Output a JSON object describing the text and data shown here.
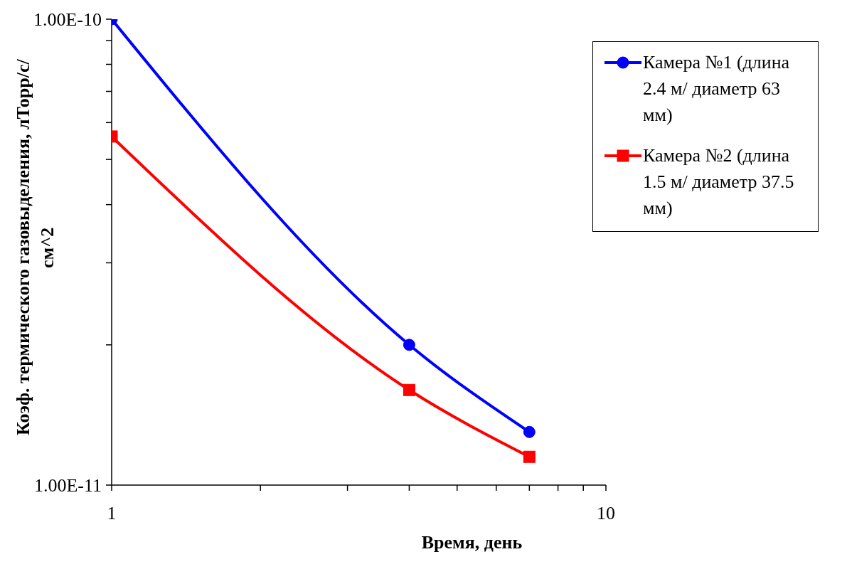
{
  "chart_data": {
    "type": "line",
    "xlabel": "Время, день",
    "ylabel": "Коэф. термического газовыделения, лТорр/с/см^2",
    "log": "xy",
    "x": [
      1,
      4,
      7
    ],
    "xlim": [
      1,
      10
    ],
    "xticks": [
      1,
      {
        "value": 2,
        "label": null
      },
      {
        "value": 3,
        "label": null
      },
      {
        "value": 4,
        "label": null
      },
      {
        "value": 5,
        "label": null
      },
      {
        "value": 6,
        "label": null
      },
      {
        "value": 7,
        "label": null
      },
      {
        "value": 8,
        "label": null
      },
      {
        "value": 9,
        "label": null
      },
      10
    ],
    "ylim": [
      1e-11,
      1e-10
    ],
    "yticks": [
      {
        "value": 1e-11,
        "label": "1.00E-11"
      },
      {
        "value": 2e-11,
        "label": null
      },
      {
        "value": 3e-11,
        "label": null
      },
      {
        "value": 4e-11,
        "label": null
      },
      {
        "value": 5e-11,
        "label": null
      },
      {
        "value": 6e-11,
        "label": null
      },
      {
        "value": 7e-11,
        "label": null
      },
      {
        "value": 8e-11,
        "label": null
      },
      {
        "value": 9e-11,
        "label": null
      },
      {
        "value": 1e-10,
        "label": "1.00E-10"
      }
    ],
    "grid": false,
    "legend": "top right",
    "series": [
      {
        "name": "Камера №1 (длина 2.4 м/ диаметр 63 мм)",
        "color": "#0000ff",
        "marker": "circle",
        "values": [
          1e-10,
          2e-11,
          1.3e-11
        ]
      },
      {
        "name": "Камера №2 (длина 1.5 м/ диаметр 37.5 мм)",
        "color": "#ff0000",
        "marker": "square",
        "values": [
          5.6e-11,
          1.6e-11,
          1.15e-11
        ]
      }
    ]
  }
}
